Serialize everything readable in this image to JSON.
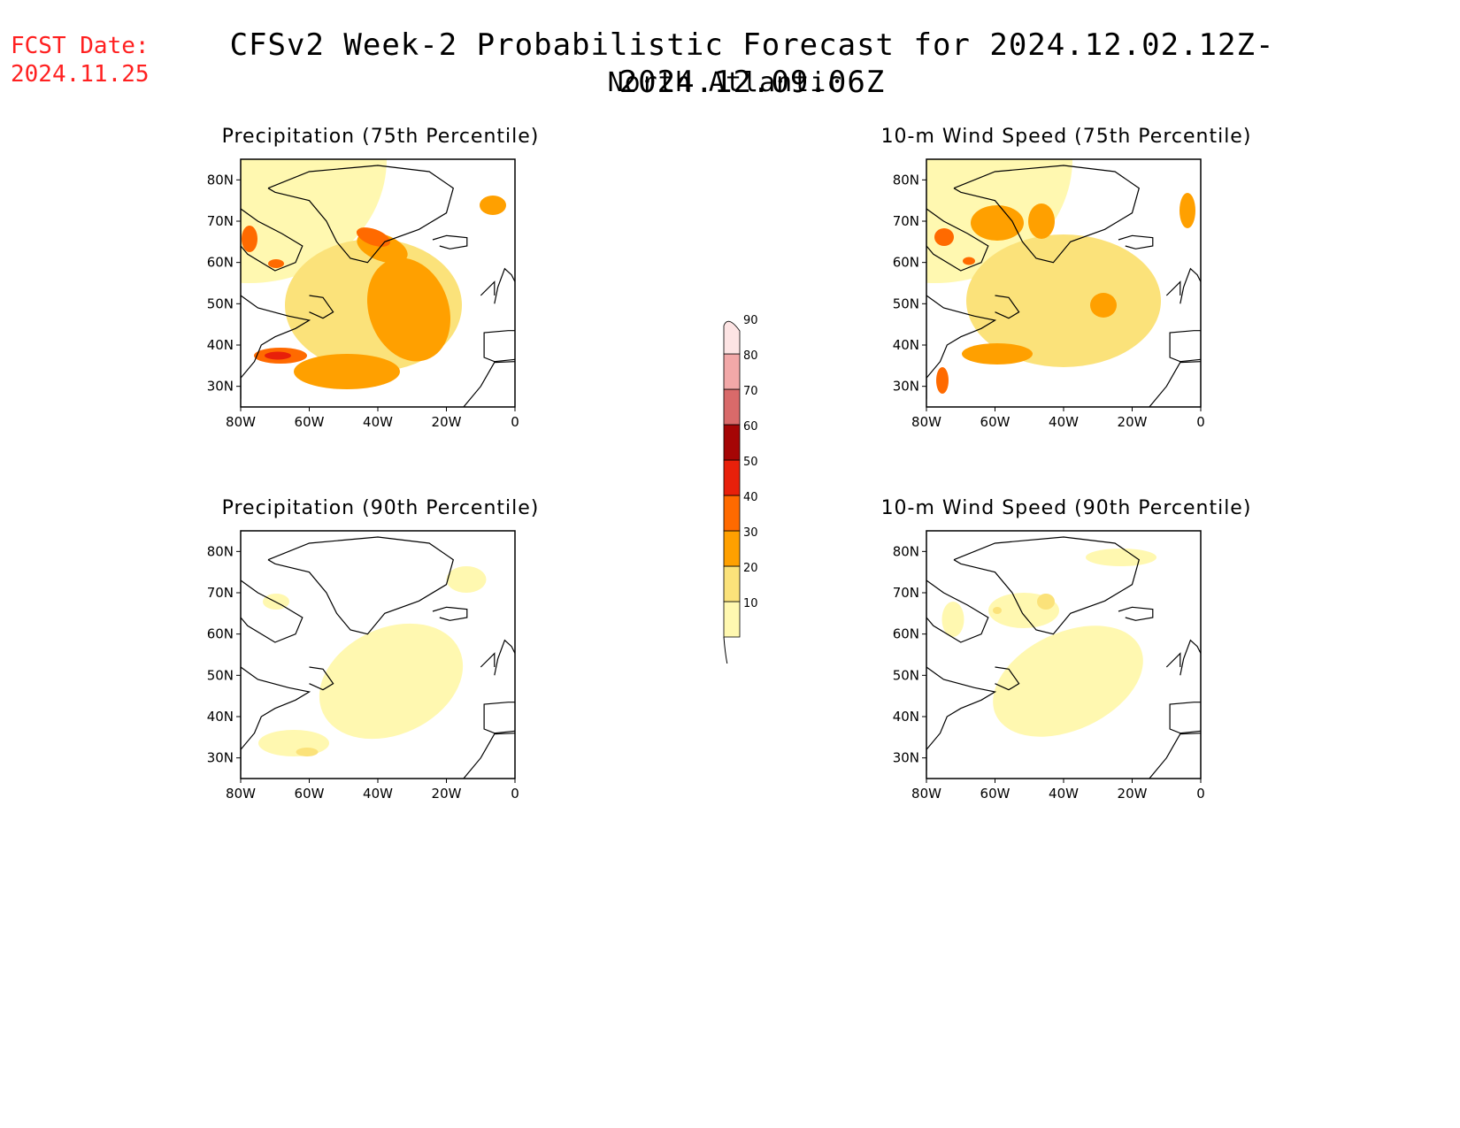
{
  "header": {
    "fcst_label": "FCST Date:",
    "fcst_date": "2024.11.25",
    "title": "CFSv2 Week-2 Probabilistic Forecast for 2024.12.02.12Z-2024.12.09.06Z",
    "subtitle": "North Atlantic"
  },
  "panels": [
    {
      "title": "Precipitation (75th Percentile)"
    },
    {
      "title": "10-m Wind Speed (75th Percentile)"
    },
    {
      "title": "Precipitation (90th Percentile)"
    },
    {
      "title": "10-m Wind Speed (90th Percentile)"
    }
  ],
  "map_axes": {
    "lat_ticks": [
      "80N",
      "70N",
      "60N",
      "50N",
      "40N",
      "30N"
    ],
    "lon_ticks": [
      "80W",
      "60W",
      "40W",
      "20W",
      "0"
    ],
    "lat_range": [
      25,
      85
    ],
    "lon_range": [
      -80,
      0
    ]
  },
  "colorbar": {
    "labels": [
      "10",
      "20",
      "30",
      "40",
      "50",
      "60",
      "70",
      "80",
      "90"
    ],
    "colors": [
      "#fff8b0",
      "#fbe27a",
      "#ffa000",
      "#ff6a00",
      "#e8200a",
      "#a50505",
      "#d96a6a",
      "#f2a8a8",
      "#fde4e4"
    ]
  }
}
